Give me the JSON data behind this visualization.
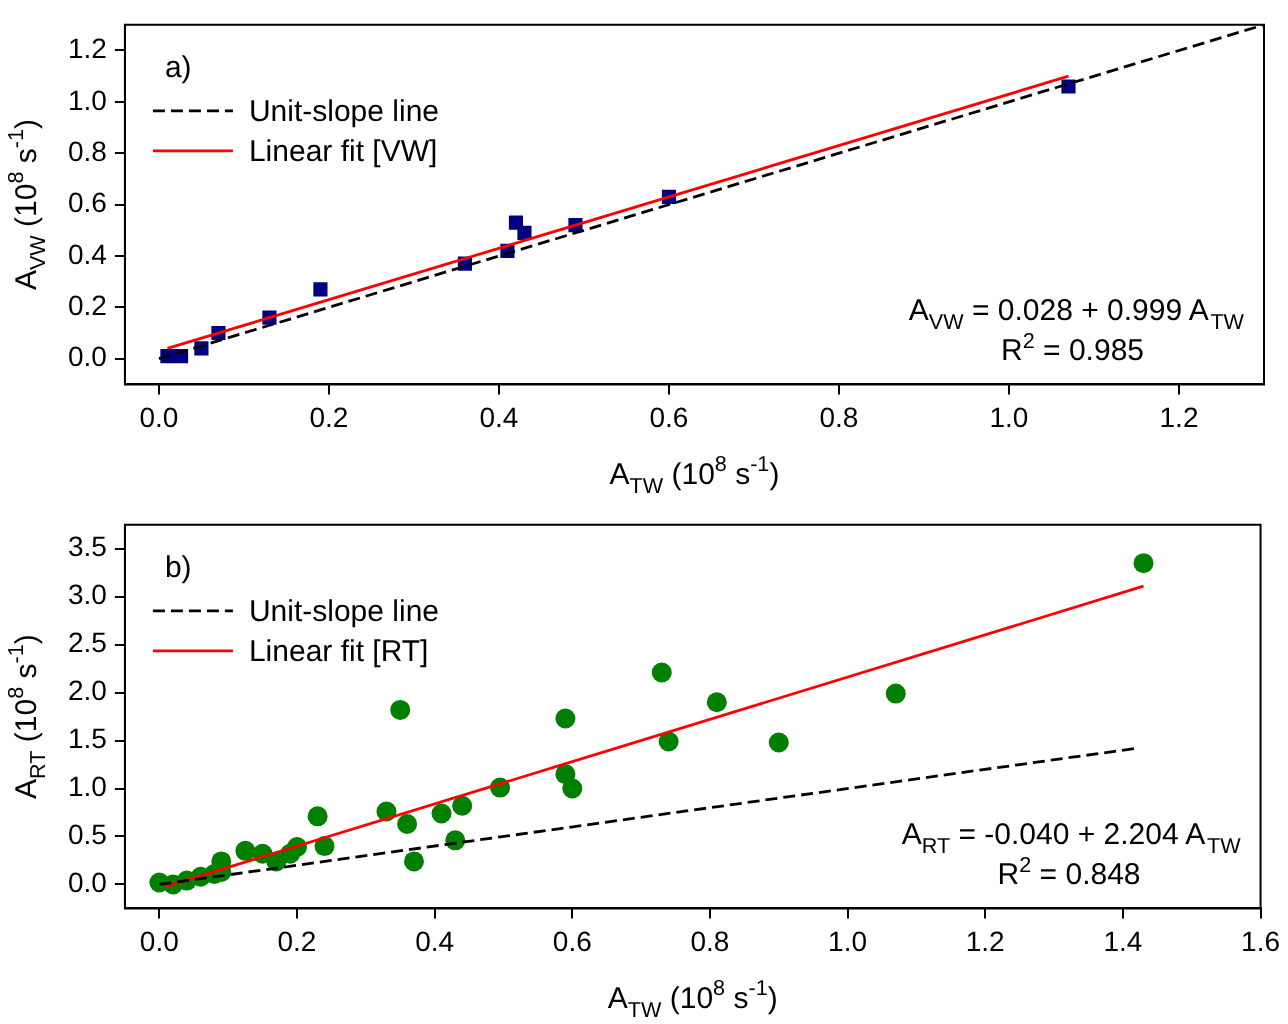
{
  "chart_data": [
    {
      "type": "scatter",
      "xlabel": "A$_{TW}$ (10$^{8}$ s$^{-1}$)",
      "ylabel": "A$_{VW}$ (10$^{8}$ s$^{-1}$)",
      "annotations": [
        "a)",
        "A$_{VW}$ = 0.028 + 0.999 A$_{TW}$",
        "R$^{2}$ = 0.985"
      ],
      "xlim": [
        -0.04,
        1.3
      ],
      "ylim": [
        -0.1,
        1.3
      ],
      "xticks": [
        {
          "value": 0,
          "label": "0.0"
        },
        {
          "value": 0.2,
          "label": "0.2"
        },
        {
          "value": 0.4,
          "label": "0.4"
        },
        {
          "value": 0.6,
          "label": "0.6"
        },
        {
          "value": 0.8,
          "label": "0.8"
        },
        {
          "value": 1,
          "label": "1.0"
        },
        {
          "value": 1.2,
          "label": "1.2"
        }
      ],
      "yticks": [
        {
          "value": 0,
          "label": "0.0"
        },
        {
          "value": 0.2,
          "label": "0.2"
        },
        {
          "value": 0.4,
          "label": "0.4"
        },
        {
          "value": 0.6,
          "label": "0.6"
        },
        {
          "value": 0.8,
          "label": "0.8"
        },
        {
          "value": 1,
          "label": "1.0"
        },
        {
          "value": 1.2,
          "label": "1.2"
        }
      ],
      "grid": false,
      "legend": "top left",
      "series": [
        {
          "type": "scatter",
          "marker": "square",
          "color": "#000080",
          "x": [
            0.01,
            0.026,
            0.05,
            0.07,
            0.13,
            0.19,
            0.36,
            0.41,
            0.42,
            0.43,
            0.49,
            0.6,
            1.07
          ],
          "values": [
            0.01,
            0.01,
            0.04,
            0.1,
            0.16,
            0.27,
            0.37,
            0.42,
            0.53,
            0.49,
            0.52,
            0.63,
            1.06
          ]
        },
        {
          "type": "line",
          "marker": "none",
          "name": "Unit-slope line",
          "color": "#000000",
          "line_style": "dashed",
          "x": [
            0,
            1.3
          ],
          "values": [
            0,
            1.3
          ]
        },
        {
          "type": "line",
          "marker": "none",
          "name": "Linear fit [VW]",
          "color": "#ff0000",
          "line_style": "solid",
          "x": [
            0.01,
            1.07
          ],
          "values": [
            0.04,
            1.1
          ]
        }
      ]
    },
    {
      "type": "scatter",
      "xlabel": "A$_{TW}$ (10$^{8}$ s$^{-1}$)",
      "ylabel": "A$_{RT}$ (10$^{8}$ s$^{-1}$)",
      "annotations": [
        "b)",
        "A$_{RT}$ = -0.040 + 2.204 A$_{TW}$",
        "R$^{2}$ = 0.848"
      ],
      "xlim": [
        -0.05,
        1.6
      ],
      "ylim": [
        -0.25,
        3.75
      ],
      "xticks": [
        {
          "value": 0,
          "label": "0.0"
        },
        {
          "value": 0.2,
          "label": "0.2"
        },
        {
          "value": 0.4,
          "label": "0.4"
        },
        {
          "value": 0.6,
          "label": "0.6"
        },
        {
          "value": 0.8,
          "label": "0.8"
        },
        {
          "value": 1,
          "label": "1.0"
        },
        {
          "value": 1.2,
          "label": "1.2"
        },
        {
          "value": 1.4,
          "label": "1.4"
        },
        {
          "value": 1.6,
          "label": "1.6"
        }
      ],
      "yticks": [
        {
          "value": 0,
          "label": "0.0"
        },
        {
          "value": 0.5,
          "label": "0.5"
        },
        {
          "value": 1,
          "label": "1.0"
        },
        {
          "value": 1.5,
          "label": "1.5"
        },
        {
          "value": 2,
          "label": "2.0"
        },
        {
          "value": 2.5,
          "label": "2.5"
        },
        {
          "value": 3,
          "label": "3.0"
        },
        {
          "value": 3.5,
          "label": "3.5"
        }
      ],
      "grid": false,
      "legend": "top left",
      "series": [
        {
          "type": "scatter",
          "marker": "circle",
          "color": "#008000",
          "x": [
            0.0,
            0.02,
            0.04,
            0.06,
            0.08,
            0.09,
            0.09,
            0.125,
            0.15,
            0.17,
            0.19,
            0.2,
            0.23,
            0.24,
            0.33,
            0.35,
            0.36,
            0.37,
            0.41,
            0.43,
            0.44,
            0.495,
            0.59,
            0.59,
            0.6,
            0.73,
            0.74,
            0.81,
            0.9,
            1.07,
            1.43
          ],
          "values": [
            0.02,
            0.0,
            0.04,
            0.08,
            0.11,
            0.24,
            0.13,
            0.35,
            0.32,
            0.24,
            0.32,
            0.39,
            0.71,
            0.4,
            0.76,
            1.82,
            0.63,
            0.24,
            0.74,
            0.46,
            0.82,
            1.01,
            1.73,
            1.15,
            1.0,
            2.21,
            1.49,
            1.9,
            1.48,
            1.99,
            3.35
          ]
        },
        {
          "type": "line",
          "marker": "none",
          "name": "Unit-slope line",
          "color": "#000000",
          "line_style": "dashed",
          "x": [
            0,
            1.42
          ],
          "values": [
            0,
            1.42
          ]
        },
        {
          "type": "line",
          "marker": "none",
          "name": "Linear fit [RT]",
          "color": "#ff0000",
          "line_style": "solid",
          "x": [
            0.01,
            1.43
          ],
          "values": [
            -0.02,
            3.11
          ]
        }
      ]
    }
  ]
}
